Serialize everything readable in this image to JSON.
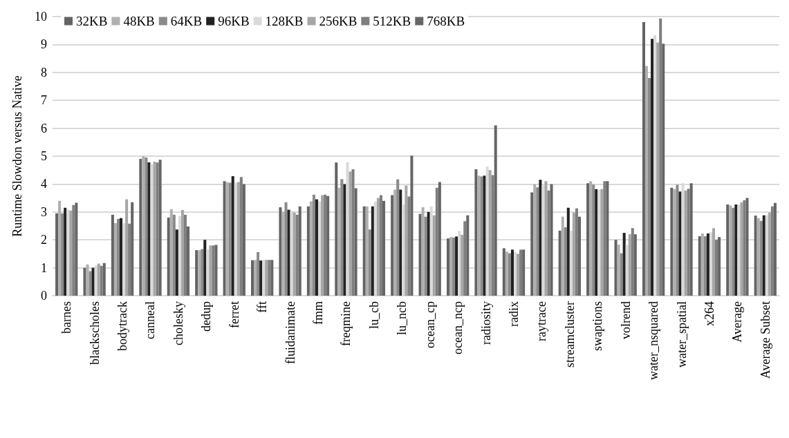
{
  "chart_data": {
    "type": "bar",
    "ylabel": "Runtime Slowdon versus Native",
    "categories": [
      "barnes",
      "blackscholes",
      "bodytrack",
      "canneal",
      "cholesky",
      "dedup",
      "ferret",
      "fft",
      "fluidanimate",
      "fmm",
      "freqmine",
      "lu_cb",
      "lu_ncb",
      "ocean_cp",
      "ocean_ncp",
      "radiosity",
      "radix",
      "raytrace",
      "streamcluster",
      "swaptions",
      "volrend",
      "water_nsquared",
      "water_spatial",
      "x264",
      "Average",
      "Average Subset"
    ],
    "series": [
      {
        "name": "32KB",
        "color": "#646464",
        "values": [
          2.95,
          1.0,
          2.9,
          4.9,
          2.8,
          1.63,
          4.1,
          1.27,
          3.17,
          3.2,
          4.77,
          3.2,
          3.6,
          2.93,
          2.05,
          4.53,
          1.7,
          3.7,
          2.33,
          4.03,
          2.0,
          9.8,
          3.87,
          2.13,
          3.27,
          2.87
        ]
      },
      {
        "name": "48KB",
        "color": "#b0b0b0",
        "values": [
          3.4,
          1.12,
          2.6,
          5.0,
          3.1,
          1.63,
          4.06,
          1.28,
          3.0,
          3.38,
          3.87,
          3.2,
          3.8,
          3.17,
          2.1,
          4.3,
          1.58,
          4.0,
          2.83,
          4.1,
          1.83,
          8.23,
          3.82,
          2.23,
          3.23,
          2.78
        ]
      },
      {
        "name": "64KB",
        "color": "#8a8a8a",
        "values": [
          2.95,
          0.88,
          2.75,
          4.95,
          2.9,
          1.67,
          4.05,
          1.56,
          3.35,
          3.62,
          4.18,
          2.37,
          4.17,
          2.83,
          2.08,
          4.27,
          1.52,
          3.88,
          2.45,
          3.98,
          1.52,
          7.8,
          3.97,
          2.13,
          3.15,
          2.68
        ]
      },
      {
        "name": "96KB",
        "color": "#222222",
        "values": [
          3.15,
          1.0,
          2.78,
          4.78,
          2.37,
          2.0,
          4.28,
          1.26,
          3.08,
          3.45,
          4.0,
          3.2,
          3.8,
          3.0,
          2.12,
          4.3,
          1.65,
          4.15,
          3.15,
          3.82,
          2.25,
          9.2,
          3.73,
          2.23,
          3.27,
          2.88
        ]
      },
      {
        "name": "128KB",
        "color": "#dadada",
        "values": [
          3.1,
          1.08,
          2.6,
          4.7,
          2.85,
          1.67,
          4.05,
          1.28,
          3.05,
          3.37,
          4.78,
          3.37,
          3.27,
          3.2,
          2.32,
          4.63,
          1.57,
          3.95,
          2.33,
          3.8,
          1.82,
          9.33,
          4.03,
          2.27,
          3.27,
          2.88
        ]
      },
      {
        "name": "256KB",
        "color": "#a6a6a6",
        "values": [
          3.05,
          1.15,
          3.45,
          4.8,
          3.07,
          1.8,
          4.07,
          1.28,
          2.98,
          3.6,
          4.45,
          3.5,
          3.95,
          2.88,
          2.18,
          4.5,
          1.5,
          4.1,
          2.98,
          3.82,
          2.2,
          9.07,
          3.77,
          2.42,
          3.35,
          2.98
        ]
      },
      {
        "name": "512KB",
        "color": "#7f7f7f",
        "values": [
          3.25,
          1.07,
          2.58,
          4.77,
          2.9,
          1.8,
          4.25,
          1.28,
          2.9,
          3.62,
          4.53,
          3.6,
          3.55,
          3.87,
          2.67,
          4.32,
          1.65,
          3.77,
          3.13,
          4.1,
          2.42,
          9.93,
          3.83,
          2.0,
          3.42,
          3.2
        ]
      },
      {
        "name": "768KB",
        "color": "#666666",
        "values": [
          3.33,
          1.17,
          3.35,
          4.87,
          2.48,
          1.82,
          4.0,
          1.28,
          3.2,
          3.57,
          3.85,
          3.4,
          5.02,
          4.07,
          2.88,
          6.1,
          1.65,
          4.0,
          2.83,
          4.1,
          2.2,
          9.03,
          4.03,
          2.1,
          3.5,
          3.32
        ]
      }
    ],
    "ylim": [
      0,
      10
    ],
    "yticks": [
      0,
      1,
      2,
      3,
      4,
      5,
      6,
      7,
      8,
      9,
      10
    ],
    "grid": "y",
    "legend": "top left"
  }
}
